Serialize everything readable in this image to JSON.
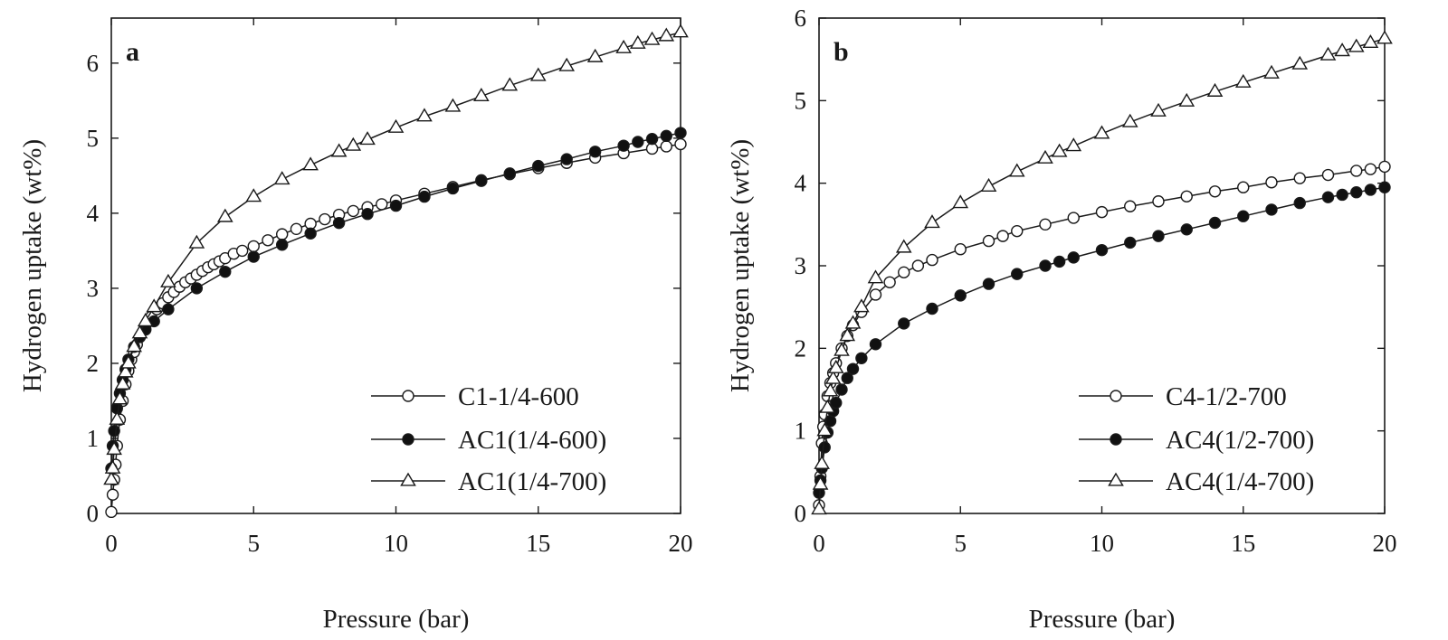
{
  "chart_data": [
    {
      "panel": "a",
      "type": "line",
      "xlabel": "Pressure (bar)",
      "ylabel": "Hydrogen uptake (wt%)",
      "xlim": [
        0,
        20
      ],
      "ylim": [
        0,
        6.6
      ],
      "xticks": [
        0,
        5,
        10,
        15,
        20
      ],
      "yticks": [
        0,
        1,
        2,
        3,
        4,
        5,
        6
      ],
      "grid": false,
      "legend_position": "bottom-right",
      "series": [
        {
          "name": "C1-1/4-600",
          "marker": "open-circle",
          "x": [
            0,
            0.05,
            0.1,
            0.15,
            0.2,
            0.3,
            0.4,
            0.5,
            0.6,
            0.7,
            0.8,
            0.9,
            1,
            1.2,
            1.4,
            1.6,
            1.8,
            2,
            2.2,
            2.4,
            2.6,
            2.8,
            3,
            3.2,
            3.4,
            3.6,
            3.8,
            4,
            4.3,
            4.6,
            5,
            5.5,
            6,
            6.5,
            7,
            7.5,
            8,
            8.5,
            9,
            9.5,
            10,
            11,
            12,
            13,
            14,
            15,
            16,
            17,
            18,
            19,
            19.5,
            20
          ],
          "y": [
            0.02,
            0.25,
            0.45,
            0.65,
            0.9,
            1.25,
            1.5,
            1.72,
            1.9,
            2.05,
            2.15,
            2.25,
            2.35,
            2.5,
            2.62,
            2.72,
            2.8,
            2.88,
            2.95,
            3.02,
            3.08,
            3.13,
            3.18,
            3.23,
            3.28,
            3.32,
            3.36,
            3.4,
            3.46,
            3.5,
            3.56,
            3.64,
            3.72,
            3.79,
            3.86,
            3.92,
            3.98,
            4.03,
            4.08,
            4.12,
            4.17,
            4.26,
            4.35,
            4.44,
            4.52,
            4.6,
            4.67,
            4.74,
            4.8,
            4.86,
            4.89,
            4.92
          ]
        },
        {
          "name": "AC1(1/4-600)",
          "marker": "filled-circle",
          "x": [
            0,
            0.05,
            0.1,
            0.2,
            0.3,
            0.4,
            0.5,
            0.6,
            0.8,
            1,
            1.2,
            1.5,
            2,
            3,
            4,
            5,
            6,
            7,
            8,
            9,
            10,
            11,
            12,
            13,
            14,
            15,
            16,
            17,
            18,
            18.5,
            19,
            19.5,
            20
          ],
          "y": [
            0.6,
            0.9,
            1.1,
            1.4,
            1.6,
            1.78,
            1.92,
            2.05,
            2.22,
            2.35,
            2.45,
            2.56,
            2.72,
            3.0,
            3.22,
            3.42,
            3.58,
            3.73,
            3.87,
            3.99,
            4.1,
            4.22,
            4.33,
            4.43,
            4.53,
            4.63,
            4.72,
            4.82,
            4.9,
            4.95,
            4.99,
            5.03,
            5.07
          ]
        },
        {
          "name": "AC1(1/4-700)",
          "marker": "open-triangle",
          "x": [
            0,
            0.05,
            0.1,
            0.2,
            0.3,
            0.4,
            0.5,
            0.6,
            0.8,
            1,
            1.2,
            1.5,
            2,
            3,
            4,
            5,
            6,
            7,
            8,
            8.5,
            9,
            10,
            11,
            12,
            13,
            14,
            15,
            16,
            17,
            18,
            18.5,
            19,
            19.5,
            20
          ],
          "y": [
            0.45,
            0.6,
            0.85,
            1.25,
            1.52,
            1.72,
            1.88,
            2.0,
            2.22,
            2.4,
            2.56,
            2.75,
            3.08,
            3.6,
            3.95,
            4.22,
            4.45,
            4.64,
            4.82,
            4.9,
            4.98,
            5.14,
            5.29,
            5.42,
            5.56,
            5.7,
            5.83,
            5.96,
            6.08,
            6.2,
            6.26,
            6.31,
            6.36,
            6.41
          ]
        }
      ]
    },
    {
      "panel": "b",
      "type": "line",
      "xlabel": "Pressure (bar)",
      "ylabel": "Hydrogen uptake (wt%)",
      "xlim": [
        0,
        20
      ],
      "ylim": [
        0,
        6
      ],
      "xticks": [
        0,
        5,
        10,
        15,
        20
      ],
      "yticks": [
        0,
        1,
        2,
        3,
        4,
        5,
        6
      ],
      "grid": false,
      "legend_position": "bottom-right",
      "series": [
        {
          "name": "C4-1/2-700",
          "marker": "open-circle",
          "x": [
            0,
            0.05,
            0.1,
            0.15,
            0.2,
            0.3,
            0.4,
            0.5,
            0.6,
            0.8,
            1,
            1.2,
            1.5,
            2,
            2.5,
            3,
            3.5,
            4,
            5,
            6,
            6.5,
            7,
            8,
            9,
            10,
            11,
            12,
            13,
            14,
            15,
            16,
            17,
            18,
            19,
            19.5,
            20
          ],
          "y": [
            0.1,
            0.45,
            0.85,
            1.05,
            1.2,
            1.42,
            1.58,
            1.7,
            1.82,
            2.0,
            2.15,
            2.28,
            2.44,
            2.65,
            2.8,
            2.92,
            3.0,
            3.07,
            3.2,
            3.3,
            3.36,
            3.42,
            3.5,
            3.58,
            3.65,
            3.72,
            3.78,
            3.84,
            3.9,
            3.95,
            4.01,
            4.06,
            4.1,
            4.15,
            4.17,
            4.2
          ]
        },
        {
          "name": "AC4(1/2-700)",
          "marker": "filled-circle",
          "x": [
            0,
            0.05,
            0.1,
            0.2,
            0.3,
            0.4,
            0.5,
            0.6,
            0.8,
            1,
            1.2,
            1.5,
            2,
            3,
            4,
            5,
            6,
            7,
            8,
            8.5,
            9,
            10,
            11,
            12,
            13,
            14,
            15,
            16,
            17,
            18,
            18.5,
            19,
            19.5,
            20
          ],
          "y": [
            0.25,
            0.4,
            0.55,
            0.8,
            0.98,
            1.12,
            1.24,
            1.34,
            1.5,
            1.64,
            1.75,
            1.88,
            2.05,
            2.3,
            2.48,
            2.64,
            2.78,
            2.9,
            3.0,
            3.05,
            3.1,
            3.19,
            3.28,
            3.36,
            3.44,
            3.52,
            3.6,
            3.68,
            3.76,
            3.83,
            3.86,
            3.89,
            3.92,
            3.95
          ]
        },
        {
          "name": "AC4(1/4-700)",
          "marker": "open-triangle",
          "x": [
            0,
            0.05,
            0.1,
            0.2,
            0.3,
            0.4,
            0.5,
            0.6,
            0.8,
            1,
            1.2,
            1.5,
            2,
            3,
            4,
            5,
            6,
            7,
            8,
            8.5,
            9,
            10,
            11,
            12,
            13,
            14,
            15,
            16,
            17,
            18,
            18.5,
            19,
            19.5,
            20
          ],
          "y": [
            0.05,
            0.35,
            0.6,
            1.0,
            1.28,
            1.48,
            1.63,
            1.76,
            1.97,
            2.15,
            2.3,
            2.5,
            2.85,
            3.22,
            3.52,
            3.76,
            3.96,
            4.14,
            4.3,
            4.38,
            4.45,
            4.6,
            4.74,
            4.87,
            4.99,
            5.11,
            5.22,
            5.33,
            5.44,
            5.55,
            5.6,
            5.65,
            5.7,
            5.75
          ]
        }
      ]
    }
  ]
}
